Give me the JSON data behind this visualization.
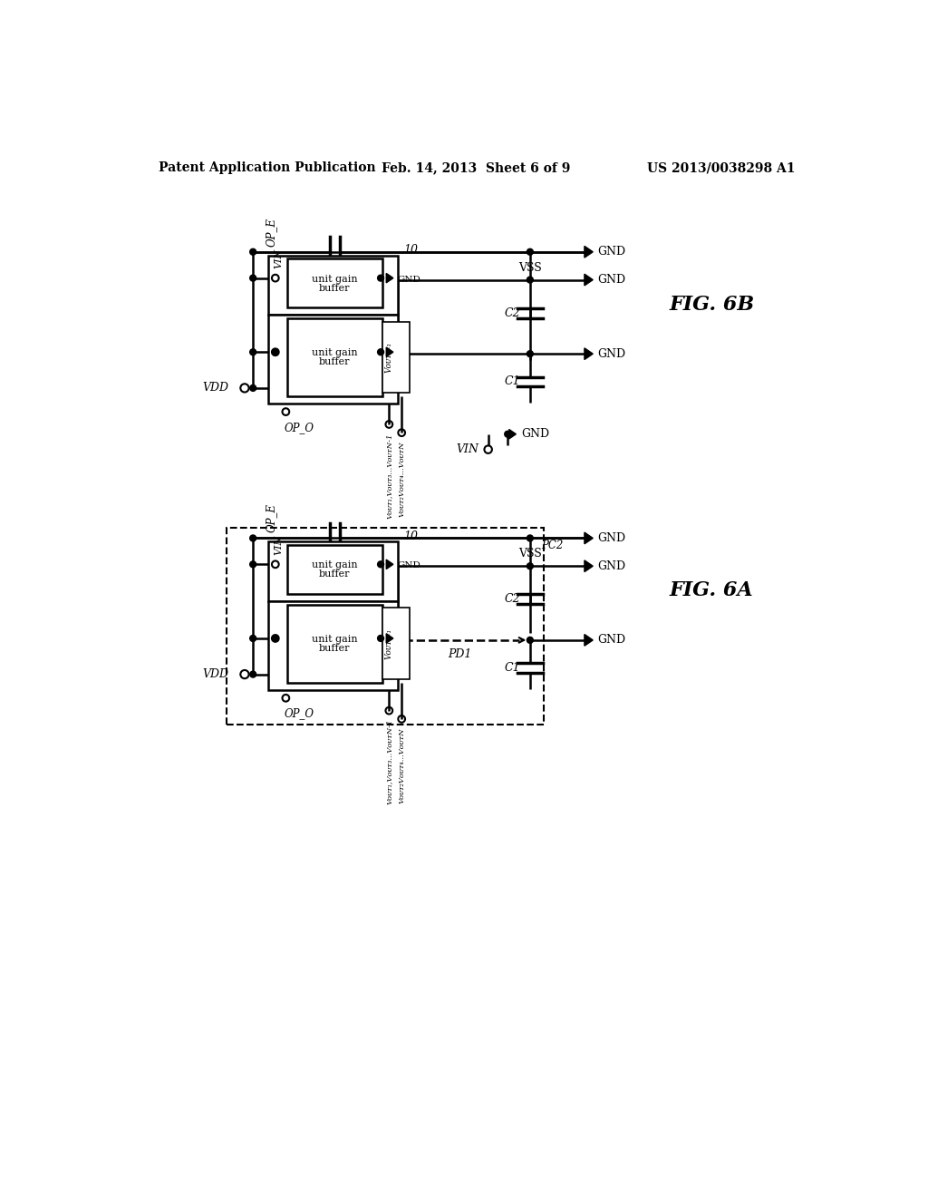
{
  "header_left": "Patent Application Publication",
  "header_mid": "Feb. 14, 2013  Sheet 6 of 9",
  "header_right": "US 2013/0038298 A1",
  "fig_b_label": "FIG. 6B",
  "fig_a_label": "FIG. 6A",
  "background_color": "#ffffff"
}
